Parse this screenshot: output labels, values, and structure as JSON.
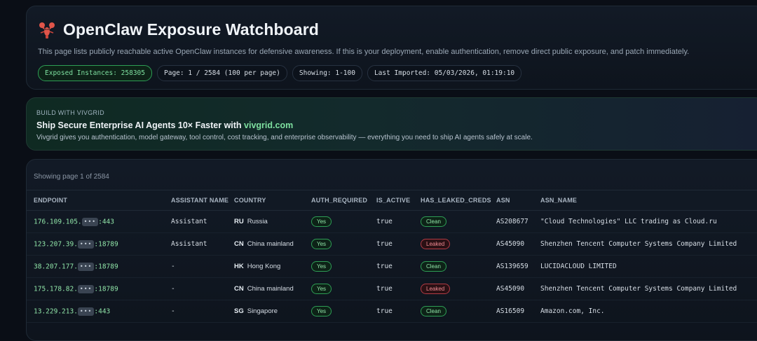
{
  "header": {
    "title": "OpenClaw Exposure Watchboard",
    "description": "This page lists publicly reachable active OpenClaw instances for defensive awareness. If this is your deployment, enable authentication, remove direct public exposure, and patch immediately.",
    "pills": {
      "exposed": "Exposed Instances: 258305",
      "page": "Page: 1 / 2584 (100 per page)",
      "showing": "Showing: 1-100",
      "imported": "Last Imported: 05/03/2026, 01:19:10"
    }
  },
  "promo": {
    "kicker": "BUILD WITH VIVGRID",
    "title_prefix": "Ship Secure Enterprise AI Agents 10× Faster with ",
    "title_link": "vivgrid.com",
    "description": "Vivgrid gives you authentication, model gateway, tool control, cost tracking, and enterprise observability — everything you need to ship AI agents safely at scale."
  },
  "table": {
    "page_info": "Showing page 1 of 2584",
    "mask": "•••",
    "columns": [
      "ENDPOINT",
      "ASSISTANT NAME",
      "COUNTRY",
      "AUTH_REQUIRED",
      "IS_ACTIVE",
      "HAS_LEAKED_CREDS",
      "ASN",
      "ASN_NAME"
    ],
    "rows": [
      {
        "ep_pre": "176.109.105.",
        "ep_post": ":443",
        "assistant": "Assistant",
        "cc": "RU",
        "country": "Russia",
        "auth": "Yes",
        "active": "true",
        "leaked": "Clean",
        "asn": "AS208677",
        "asn_name": "\"Cloud Technologies\" LLC trading as Cloud.ru"
      },
      {
        "ep_pre": "123.207.39.",
        "ep_post": ":18789",
        "assistant": "Assistant",
        "cc": "CN",
        "country": "China mainland",
        "auth": "Yes",
        "active": "true",
        "leaked": "Leaked",
        "asn": "AS45090",
        "asn_name": "Shenzhen Tencent Computer Systems Company Limited"
      },
      {
        "ep_pre": "38.207.177.",
        "ep_post": ":18789",
        "assistant": "-",
        "cc": "HK",
        "country": "Hong Kong",
        "auth": "Yes",
        "active": "true",
        "leaked": "Clean",
        "asn": "AS139659",
        "asn_name": "LUCIDACLOUD LIMITED"
      },
      {
        "ep_pre": "175.178.82.",
        "ep_post": ":18789",
        "assistant": "-",
        "cc": "CN",
        "country": "China mainland",
        "auth": "Yes",
        "active": "true",
        "leaked": "Leaked",
        "asn": "AS45090",
        "asn_name": "Shenzhen Tencent Computer Systems Company Limited"
      },
      {
        "ep_pre": "13.229.213.",
        "ep_post": ":443",
        "assistant": "-",
        "cc": "SG",
        "country": "Singapore",
        "auth": "Yes",
        "active": "true",
        "leaked": "Clean",
        "asn": "AS16509",
        "asn_name": "Amazon.com, Inc."
      }
    ]
  },
  "colors": {
    "accent_green": "#7ee0a0",
    "leaked_red": "#f08a92",
    "background": "#0a0e16"
  },
  "icons": {
    "logo": "lobster-icon"
  }
}
